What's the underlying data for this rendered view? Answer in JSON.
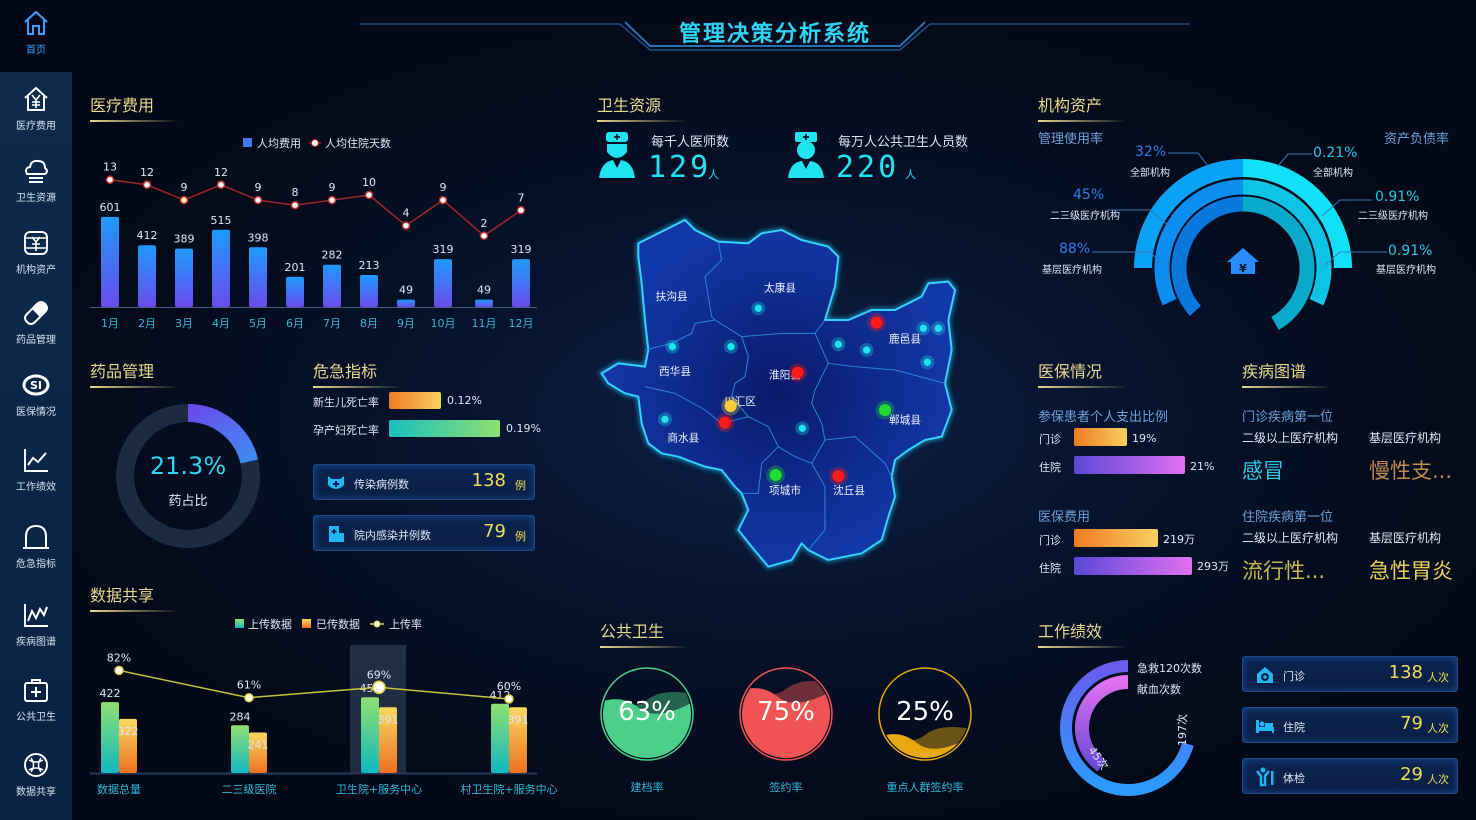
{
  "title": "管理决策分析系统",
  "sidebar": [
    {
      "label": "首页",
      "icon": "home-icon"
    },
    {
      "label": "医疗费用",
      "icon": "house-yuan-icon"
    },
    {
      "label": "卫生资源",
      "icon": "cloud-icon"
    },
    {
      "label": "机构资产",
      "icon": "coin-stack-icon"
    },
    {
      "label": "药品管理",
      "icon": "pill-icon"
    },
    {
      "label": "医保情况",
      "icon": "si-badge-icon"
    },
    {
      "label": "工作绩效",
      "icon": "line-chart-icon"
    },
    {
      "label": "危急指标",
      "icon": "bell-icon"
    },
    {
      "label": "疾病图谱",
      "icon": "trend-chart-icon"
    },
    {
      "label": "公共卫生",
      "icon": "medical-kit-icon"
    },
    {
      "label": "数据共享",
      "icon": "share-icon"
    }
  ],
  "medical_cost": {
    "title": "医疗费用"
  },
  "drug": {
    "title": "药品管理",
    "value": "21.3%",
    "percent": 21.3,
    "label": "药占比",
    "colors": [
      "#3d8cf0",
      "#6a4bea"
    ]
  },
  "crisis": {
    "title": "危急指标",
    "rates": [
      {
        "label": "新生儿死亡率",
        "value": "0.12%",
        "colors": [
          "#f07a22",
          "#f8d060"
        ]
      },
      {
        "label": "孕产妇死亡率",
        "value": "0.19%",
        "colors": [
          "#18c0c0",
          "#8ee070"
        ]
      }
    ],
    "cards": [
      {
        "label": "传染病例数",
        "value": "138",
        "unit": "例",
        "icon": "virus-mask-icon"
      },
      {
        "label": "院内感染并例数",
        "value": "79",
        "unit": "例",
        "icon": "hospital-icon"
      }
    ]
  },
  "data_share": {
    "title": "数据共享"
  },
  "health_resources": {
    "title": "卫生资源",
    "stats": [
      {
        "label": "每千人医师数",
        "value": "129",
        "unit": "人",
        "icon": "doctor-icon"
      },
      {
        "label": "每万人公共卫生人员数",
        "value": "220",
        "unit": "人",
        "icon": "nurse-icon"
      }
    ]
  },
  "map": {
    "districts": [
      "扶沟县",
      "太康县",
      "西华县",
      "淮阳县",
      "川汇区",
      "鹿邑县",
      "郸城县",
      "商水县",
      "项城市",
      "沈丘县"
    ],
    "marker_colors": {
      "normal": "#1fe3ee",
      "alert": "#ff1a1a",
      "warning": "#f2d040",
      "good": "#22dd33"
    }
  },
  "public_health": {
    "title": "公共卫生",
    "items": [
      {
        "label": "建档率",
        "value": "63%",
        "percent": 63,
        "color": "#4ccf8a"
      },
      {
        "label": "签约率",
        "value": "75%",
        "percent": 75,
        "color": "#f05454"
      },
      {
        "label": "重点人群签约率",
        "value": "25%",
        "percent": 25,
        "color": "#e8a810"
      }
    ]
  },
  "assets": {
    "title": "机构资产",
    "left_title": "管理使用率",
    "right_title": "资产负债率",
    "left": [
      {
        "value": "32%",
        "label": "全部机构"
      },
      {
        "value": "45%",
        "label": "二三级医疗机构"
      },
      {
        "value": "88%",
        "label": "基层医疗机构"
      }
    ],
    "right": [
      {
        "value": "0.21%",
        "label": "全部机构"
      },
      {
        "value": "0.91%",
        "label": "二三级医疗机构"
      },
      {
        "value": "0.91%",
        "label": "基层医疗机构"
      }
    ],
    "center_icon": "house-yuan-icon"
  },
  "insurance": {
    "title": "医保情况",
    "ratio_title": "参保患者个人支出比例",
    "ratio": [
      {
        "label": "门诊",
        "value": "19%",
        "percent": 19
      },
      {
        "label": "住院",
        "value": "21%",
        "percent": 21
      }
    ],
    "cost_title": "医保费用",
    "cost": [
      {
        "label": "门诊",
        "value": "219万",
        "amount": 219
      },
      {
        "label": "住院",
        "value": "293万",
        "amount": 293
      }
    ]
  },
  "disease": {
    "title": "疾病图谱",
    "outpatient_title": "门诊疾病第一位",
    "inpatient_title": "住院疾病第一位",
    "col1": "二级以上医疗机构",
    "col2": "基层医疗机构",
    "outpatient": [
      "感冒",
      "慢性支..."
    ],
    "inpatient": [
      "流行性...",
      "急性胃炎"
    ]
  },
  "performance": {
    "title": "工作绩效",
    "ring": [
      {
        "label": "急救120次数",
        "value": "197次",
        "count": 197
      },
      {
        "label": "献血次数",
        "value": "45次",
        "count": 45
      }
    ],
    "cards": [
      {
        "label": "门诊",
        "value": "138",
        "unit": "人次",
        "icon": "clinic-icon"
      },
      {
        "label": "住院",
        "value": "79",
        "unit": "人次",
        "icon": "bed-icon"
      },
      {
        "label": "体检",
        "value": "29",
        "unit": "人次",
        "icon": "checkup-icon"
      }
    ]
  },
  "chart_data": [
    {
      "type": "bar",
      "categories": [
        "1月",
        "2月",
        "3月",
        "4月",
        "5月",
        "6月",
        "7月",
        "8月",
        "9月",
        "10月",
        "11月",
        "12月"
      ],
      "series": [
        {
          "name": "人均费用",
          "type": "bar",
          "values": [
            601,
            412,
            389,
            515,
            398,
            201,
            282,
            213,
            49,
            319,
            49,
            319
          ],
          "color": "#1e9bff"
        },
        {
          "name": "人均住院天数",
          "type": "line",
          "values": [
            13,
            12,
            9,
            12,
            9,
            8,
            9,
            10,
            4,
            9,
            2,
            7
          ],
          "color": "#a02828"
        }
      ],
      "legend": "top-center",
      "grid": false
    },
    {
      "type": "bar",
      "categories": [
        "数据总量",
        "二三级医院",
        "卫生院+服务中心",
        "村卫生院+服务中心"
      ],
      "series": [
        {
          "name": "上传数据",
          "type": "bar",
          "values": [
            422,
            284,
            451,
            412
          ],
          "color": "#5fd86a"
        },
        {
          "name": "已传数据",
          "type": "bar",
          "values": [
            322,
            241,
            391,
            391
          ],
          "color": "#f8a030"
        },
        {
          "name": "上传率",
          "type": "line",
          "values": [
            82,
            61,
            69,
            60
          ],
          "unit": "%",
          "color": "#e0d040"
        }
      ],
      "highlighted_category": "卫生院+服务中心",
      "legend": "top-center",
      "grid": false
    }
  ]
}
